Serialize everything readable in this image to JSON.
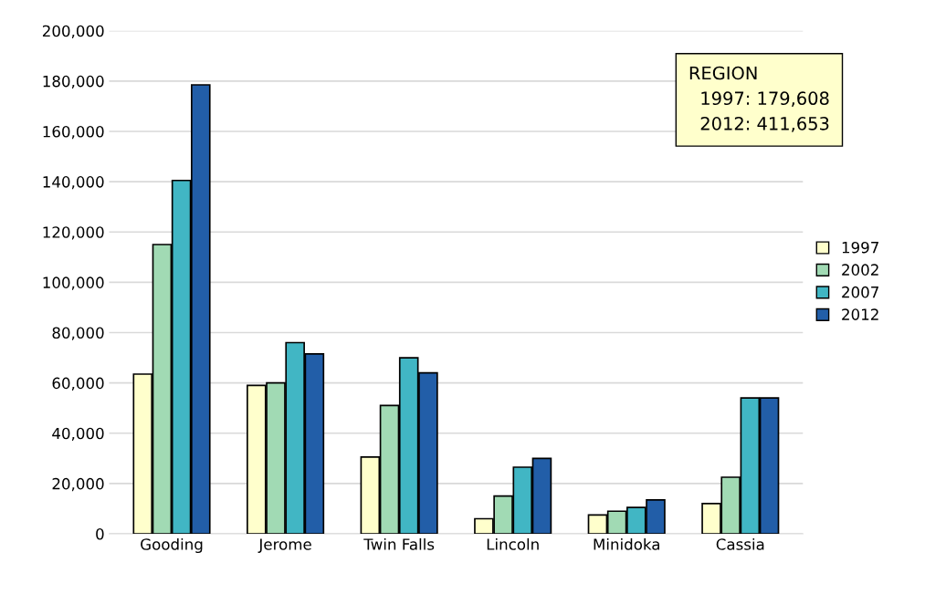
{
  "chart_data": {
    "type": "bar",
    "categories": [
      "Gooding",
      "Jerome",
      "Twin Falls",
      "Lincoln",
      "Minidoka",
      "Cassia"
    ],
    "series": [
      {
        "name": "1997",
        "color": "#ffffcc",
        "values": [
          63500,
          59000,
          30500,
          6000,
          7500,
          12000
        ]
      },
      {
        "name": "2002",
        "color": "#a1dab4",
        "values": [
          115000,
          60000,
          51000,
          15000,
          9000,
          22500
        ]
      },
      {
        "name": "2007",
        "color": "#41b6c4",
        "values": [
          140500,
          76000,
          70000,
          26500,
          10500,
          54000
        ]
      },
      {
        "name": "2012",
        "color": "#225ea8",
        "values": [
          178500,
          71500,
          64000,
          30000,
          13500,
          54000
        ]
      }
    ],
    "ylim": [
      0,
      200000
    ],
    "yticks": [
      {
        "value": 0,
        "label": "0"
      },
      {
        "value": 20000,
        "label": "20,000"
      },
      {
        "value": 40000,
        "label": "40,000"
      },
      {
        "value": 60000,
        "label": "60,000"
      },
      {
        "value": 80000,
        "label": "80,000"
      },
      {
        "value": 100000,
        "label": "100,000"
      },
      {
        "value": 120000,
        "label": "120,000"
      },
      {
        "value": 140000,
        "label": "140,000"
      },
      {
        "value": 160000,
        "label": "160,000"
      },
      {
        "value": 180000,
        "label": "180,000"
      },
      {
        "value": 200000,
        "label": "200,000"
      }
    ],
    "annotations": [
      "REGION\n  1997: 179,608\n  2012: 411,653"
    ],
    "grid": "y",
    "legend": "right"
  }
}
